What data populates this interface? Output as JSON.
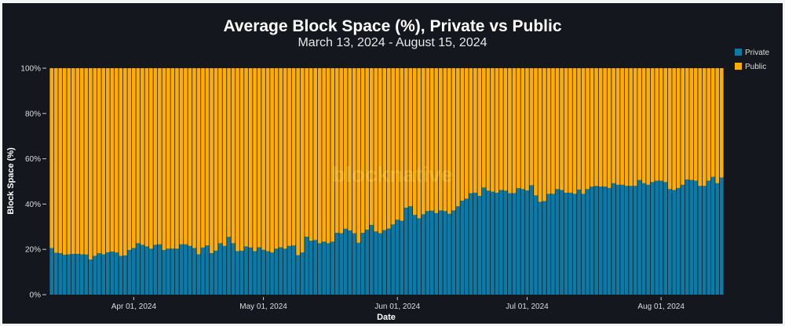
{
  "chart_data": {
    "type": "bar",
    "stacked": true,
    "title": "Average Block Space (%), Private vs Public",
    "subtitle": "March 13, 2024 - August 15, 2024",
    "xlabel": "Date",
    "ylabel": "Block Space (%)",
    "x_start": "2024-03-13",
    "x_end": "2024-08-15",
    "x_ticks": [
      "Apr 01, 2024",
      "May 01, 2024",
      "Jun 01, 2024",
      "Jul 01, 2024",
      "Aug 01, 2024"
    ],
    "x_tick_dates": [
      "2024-04-01",
      "2024-05-01",
      "2024-06-01",
      "2024-07-01",
      "2024-08-01"
    ],
    "y_ticks": [
      "0%",
      "20%",
      "40%",
      "60%",
      "80%",
      "100%"
    ],
    "ylim": [
      0,
      100
    ],
    "grid": false,
    "legend_position": "top-right",
    "watermark": "blocknative",
    "series": [
      {
        "name": "Private",
        "color": "#0a7aa6",
        "values": [
          20.6,
          18.5,
          18.3,
          17.6,
          17.8,
          18,
          18,
          17.8,
          17.7,
          15.5,
          17.1,
          18.3,
          17.8,
          18.7,
          19,
          18.6,
          17.1,
          17.3,
          19.7,
          20.6,
          22.7,
          22,
          21.3,
          20.3,
          22,
          22.2,
          19.7,
          20.3,
          20.3,
          20.3,
          22.2,
          22.2,
          21.5,
          20.6,
          17.8,
          20.8,
          21.7,
          18.3,
          19.4,
          22.7,
          21.5,
          25.5,
          22.7,
          19.2,
          19.4,
          21.3,
          20.8,
          19.2,
          20.9,
          19.8,
          19.2,
          18.6,
          20.3,
          20.9,
          20.3,
          21.5,
          21.7,
          17.4,
          18.6,
          25.6,
          23.8,
          24.1,
          22.7,
          23.4,
          22.7,
          23.4,
          27.3,
          27.1,
          29.1,
          28.3,
          27.1,
          22.9,
          27.3,
          28.7,
          30.8,
          27.9,
          27.1,
          28.5,
          29.2,
          31,
          33.1,
          32.6,
          38.4,
          39,
          35.2,
          33.7,
          35.5,
          36.9,
          37.1,
          36,
          37.2,
          36.9,
          35.7,
          37.2,
          39,
          41.5,
          42.4,
          44.8,
          45,
          43.6,
          47.3,
          45.9,
          45.5,
          45,
          46.2,
          45.9,
          44.8,
          44.8,
          47,
          46.6,
          46,
          48.3,
          43.8,
          41,
          41.3,
          44.5,
          44.5,
          46.6,
          46.2,
          45,
          45,
          44.5,
          46.4,
          44.5,
          46.6,
          47.7,
          48,
          47.7,
          47.7,
          47.1,
          49.2,
          48.5,
          48.5,
          48,
          48,
          48,
          50.6,
          49.2,
          48.5,
          49.7,
          50.3,
          50.3,
          49.7,
          46.6,
          46.2,
          47.1,
          48.5,
          50.8,
          50.6,
          50.3,
          48,
          48,
          50.3,
          52,
          49.2,
          51.7
        ]
      },
      {
        "name": "Public",
        "color": "#ffae00",
        "values": [
          79.4,
          81.5,
          81.7,
          82.4,
          82.2,
          82,
          82,
          82.2,
          82.3,
          84.5,
          82.9,
          81.7,
          82.2,
          81.3,
          81,
          81.4,
          82.9,
          82.7,
          80.3,
          79.4,
          77.3,
          78,
          78.7,
          79.7,
          78,
          77.8,
          80.3,
          79.7,
          79.7,
          79.7,
          77.8,
          77.8,
          78.5,
          79.4,
          82.2,
          79.2,
          78.3,
          81.7,
          80.6,
          77.3,
          78.5,
          74.5,
          77.3,
          80.8,
          80.6,
          78.7,
          79.2,
          80.8,
          79.1,
          80.2,
          80.8,
          81.4,
          79.7,
          79.1,
          79.7,
          78.5,
          78.3,
          82.6,
          81.4,
          74.4,
          76.2,
          75.9,
          77.3,
          76.6,
          77.3,
          76.6,
          72.7,
          72.9,
          70.9,
          71.7,
          72.9,
          77.1,
          72.7,
          71.3,
          69.2,
          72.1,
          72.9,
          71.5,
          70.8,
          69,
          66.9,
          67.4,
          61.6,
          61,
          64.8,
          66.3,
          64.5,
          63.1,
          62.9,
          64,
          62.8,
          63.1,
          64.3,
          62.8,
          61,
          58.5,
          57.6,
          55.2,
          55,
          56.4,
          52.7,
          54.1,
          54.5,
          55,
          53.8,
          54.1,
          55.2,
          55.2,
          53,
          53.4,
          54,
          51.7,
          56.2,
          59,
          58.7,
          55.5,
          55.5,
          53.4,
          53.8,
          55,
          55,
          55.5,
          53.6,
          55.5,
          53.4,
          52.3,
          52,
          52.3,
          52.3,
          52.9,
          50.8,
          51.5,
          51.5,
          52,
          52,
          52,
          49.4,
          50.8,
          51.5,
          50.3,
          49.7,
          49.7,
          50.3,
          53.4,
          53.8,
          52.9,
          51.5,
          49.2,
          49.4,
          49.7,
          52,
          52,
          49.7,
          48,
          50.8,
          48.3
        ]
      }
    ]
  }
}
